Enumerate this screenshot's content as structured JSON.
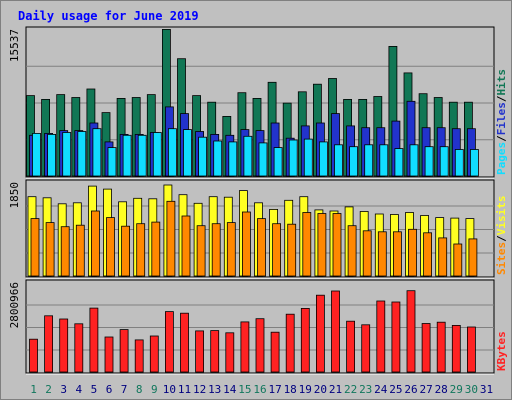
{
  "chart_data": {
    "type": "bar",
    "title": "Daily usage for June 2019",
    "days": [
      "1",
      "2",
      "3",
      "4",
      "5",
      "6",
      "7",
      "8",
      "9",
      "10",
      "11",
      "12",
      "13",
      "14",
      "15",
      "16",
      "17",
      "18",
      "19",
      "20",
      "21",
      "22",
      "23",
      "24",
      "25",
      "26",
      "27",
      "28",
      "29",
      "30",
      "31"
    ],
    "weekend_days": [
      "1",
      "2",
      "8",
      "9",
      "15",
      "16",
      "22",
      "23",
      "29",
      "30"
    ],
    "panels": [
      {
        "id": "hits-files-pages",
        "axis_max_label": "15537",
        "ylim": [
          0,
          15537
        ],
        "legend": [
          "Pages",
          "Files",
          "Hits"
        ],
        "series": [
          {
            "name": "Hits",
            "color": "#117755",
            "values": [
              8500,
              8100,
              8600,
              8300,
              9200,
              6700,
              8200,
              8300,
              8600,
              15500,
              12400,
              8500,
              7800,
              6300,
              8800,
              8200,
              9900,
              7700,
              8900,
              9700,
              10300,
              8100,
              8100,
              8400,
              13700,
              10900,
              8700,
              8300,
              7800,
              7800,
              0
            ]
          },
          {
            "name": "Files",
            "color": "#2233cc",
            "values": [
              4300,
              4500,
              4800,
              4800,
              5600,
              3600,
              4400,
              4400,
              4600,
              7300,
              6600,
              4700,
              4400,
              4300,
              4900,
              4800,
              5600,
              4000,
              5300,
              5600,
              6600,
              5300,
              5100,
              5100,
              5800,
              7900,
              5100,
              5100,
              5000,
              5000,
              0
            ]
          },
          {
            "name": "Pages",
            "color": "#11ddff",
            "values": [
              4500,
              4400,
              4600,
              4700,
              5000,
              3000,
              4300,
              4300,
              4600,
              5000,
              4900,
              4100,
              3700,
              3600,
              4200,
              3500,
              3000,
              3800,
              3900,
              3600,
              3300,
              3100,
              3300,
              3300,
              2900,
              3300,
              3100,
              3100,
              2800,
              2800,
              0
            ]
          }
        ]
      },
      {
        "id": "visits-sites",
        "axis_max_label": "1850",
        "ylim": [
          0,
          1850
        ],
        "legend": [
          "Sites",
          "Visits"
        ],
        "series": [
          {
            "name": "Visits",
            "color": "#ffff22",
            "values": [
              1560,
              1540,
              1420,
              1440,
              1770,
              1710,
              1460,
              1530,
              1520,
              1790,
              1600,
              1430,
              1560,
              1550,
              1680,
              1440,
              1310,
              1490,
              1560,
              1300,
              1280,
              1360,
              1270,
              1220,
              1210,
              1250,
              1190,
              1150,
              1140,
              1130,
              0
            ]
          },
          {
            "name": "Sites",
            "color": "#ff8800",
            "values": [
              1130,
              1050,
              970,
              1000,
              1280,
              1150,
              980,
              1030,
              1060,
              1470,
              1180,
              990,
              1030,
              1050,
              1260,
              1130,
              1030,
              1020,
              1250,
              1230,
              1230,
              990,
              890,
              870,
              870,
              920,
              850,
              750,
              630,
              730,
              0
            ]
          }
        ]
      },
      {
        "id": "kbytes",
        "axis_max_label": "2800966",
        "ylim": [
          0,
          2800966
        ],
        "legend": [
          "KBytes"
        ],
        "series": [
          {
            "name": "KBytes",
            "color": "#ff2222",
            "values": [
              1020000,
              1750000,
              1650000,
              1500000,
              1990000,
              1090000,
              1320000,
              1000000,
              1120000,
              1880000,
              1830000,
              1280000,
              1290000,
              1220000,
              1560000,
              1660000,
              1240000,
              1800000,
              1980000,
              2390000,
              2520000,
              1580000,
              1470000,
              2210000,
              2180000,
              2530000,
              1510000,
              1550000,
              1450000,
              1400000,
              0
            ]
          }
        ]
      }
    ],
    "colors": {
      "title": "#0000ff",
      "background": "#c0c0c0",
      "plot_background": "#c0c0c0",
      "weekend_label": "#11775d",
      "weekday_label": "#000080",
      "bar_outline": "#000000"
    }
  }
}
